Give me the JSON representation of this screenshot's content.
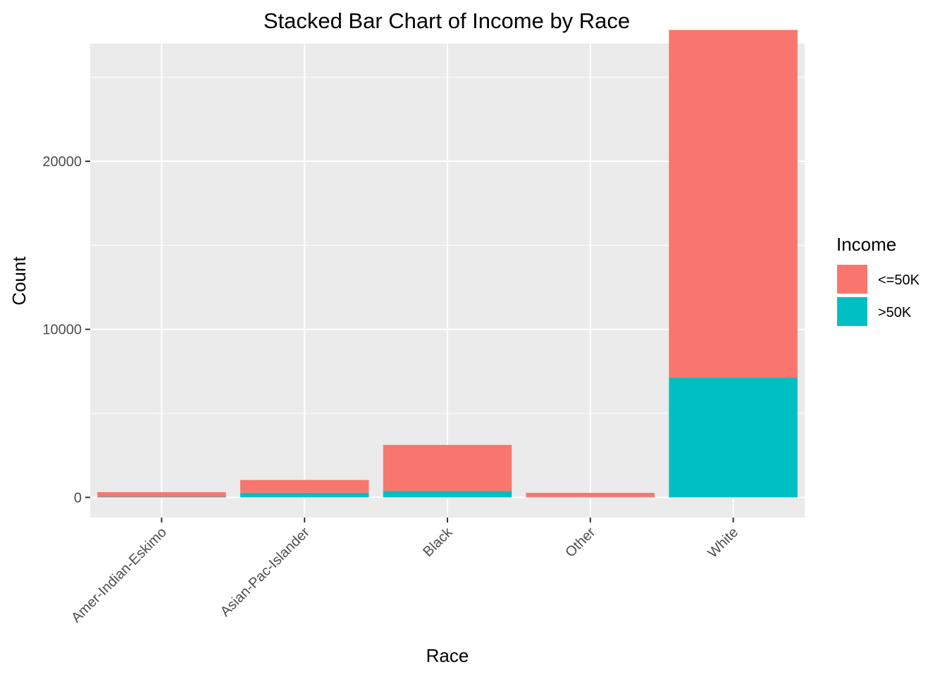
{
  "chart_data": {
    "type": "bar",
    "stacked": true,
    "title": "Stacked Bar Chart of Income by Race",
    "xlabel": "Race",
    "ylabel": "Count",
    "categories": [
      "Amer-Indian-Eskimo",
      "Asian-Pac-Islander",
      "Black",
      "Other",
      "White"
    ],
    "series": [
      {
        "name": "<=50K",
        "color": "#F8766D",
        "values": [
          275,
          763,
          2737,
          246,
          20699
        ]
      },
      {
        "name": ">50K",
        "color": "#00BFC4",
        "values": [
          36,
          276,
          387,
          25,
          7117
        ]
      }
    ],
    "ylim": [
      -1200,
      27000
    ],
    "yticks": [
      0,
      10000,
      20000
    ],
    "grid": true,
    "legend": {
      "title": "Income",
      "position": "right"
    },
    "colors": {
      "panel_bg": "#EBEBEB",
      "grid": "#FFFFFF"
    }
  }
}
